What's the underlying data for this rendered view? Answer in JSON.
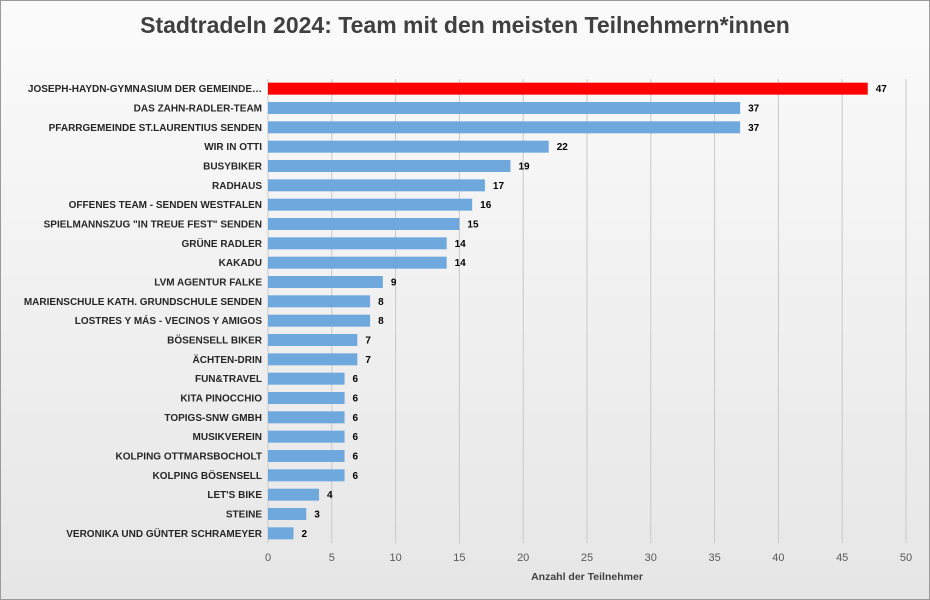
{
  "chart_data": {
    "type": "bar",
    "orientation": "horizontal",
    "title": "Stadtradeln 2024: Team mit den meisten Teilnehmern*innen",
    "xlabel": "Anzahl der Teilnehmer",
    "ylabel": "",
    "xlim": [
      0,
      50
    ],
    "xticks": [
      0,
      5,
      10,
      15,
      20,
      25,
      30,
      35,
      40,
      45,
      50
    ],
    "grid": true,
    "colors": {
      "highlight": "#ff0000",
      "default": "#6fa8dc"
    },
    "categories": [
      "JOSEPH-HAYDN-GYMNASIUM DER GEMEINDE…",
      "DAS ZAHN-RADLER-TEAM",
      "PFARRGEMEINDE ST.LAURENTIUS SENDEN",
      "WIR IN OTTI",
      "BUSYBIKER",
      "RADHAUS",
      "OFFENES TEAM - SENDEN WESTFALEN",
      "SPIELMANNSZUG \"IN TREUE FEST\" SENDEN",
      "GRÜNE RADLER",
      "KAKADU",
      "LVM AGENTUR FALKE",
      "MARIENSCHULE KATH. GRUNDSCHULE SENDEN",
      "LOSTRES Y MÁS - VECINOS Y AMIGOS",
      "BÖSENSELL BIKER",
      "ÄCHTEN-DRIN",
      "FUN&TRAVEL",
      "KITA PINOCCHIO",
      "TOPIGS-SNW GMBH",
      "MUSIKVEREIN",
      "KOLPING OTTMARSBOCHOLT",
      "KOLPING BÖSENSELL",
      "LET'S BIKE",
      "STEINE",
      "VERONIKA UND GÜNTER SCHRAMEYER"
    ],
    "values": [
      47,
      37,
      37,
      22,
      19,
      17,
      16,
      15,
      14,
      14,
      9,
      8,
      8,
      7,
      7,
      6,
      6,
      6,
      6,
      6,
      6,
      4,
      3,
      2
    ],
    "highlight_index": 0
  }
}
